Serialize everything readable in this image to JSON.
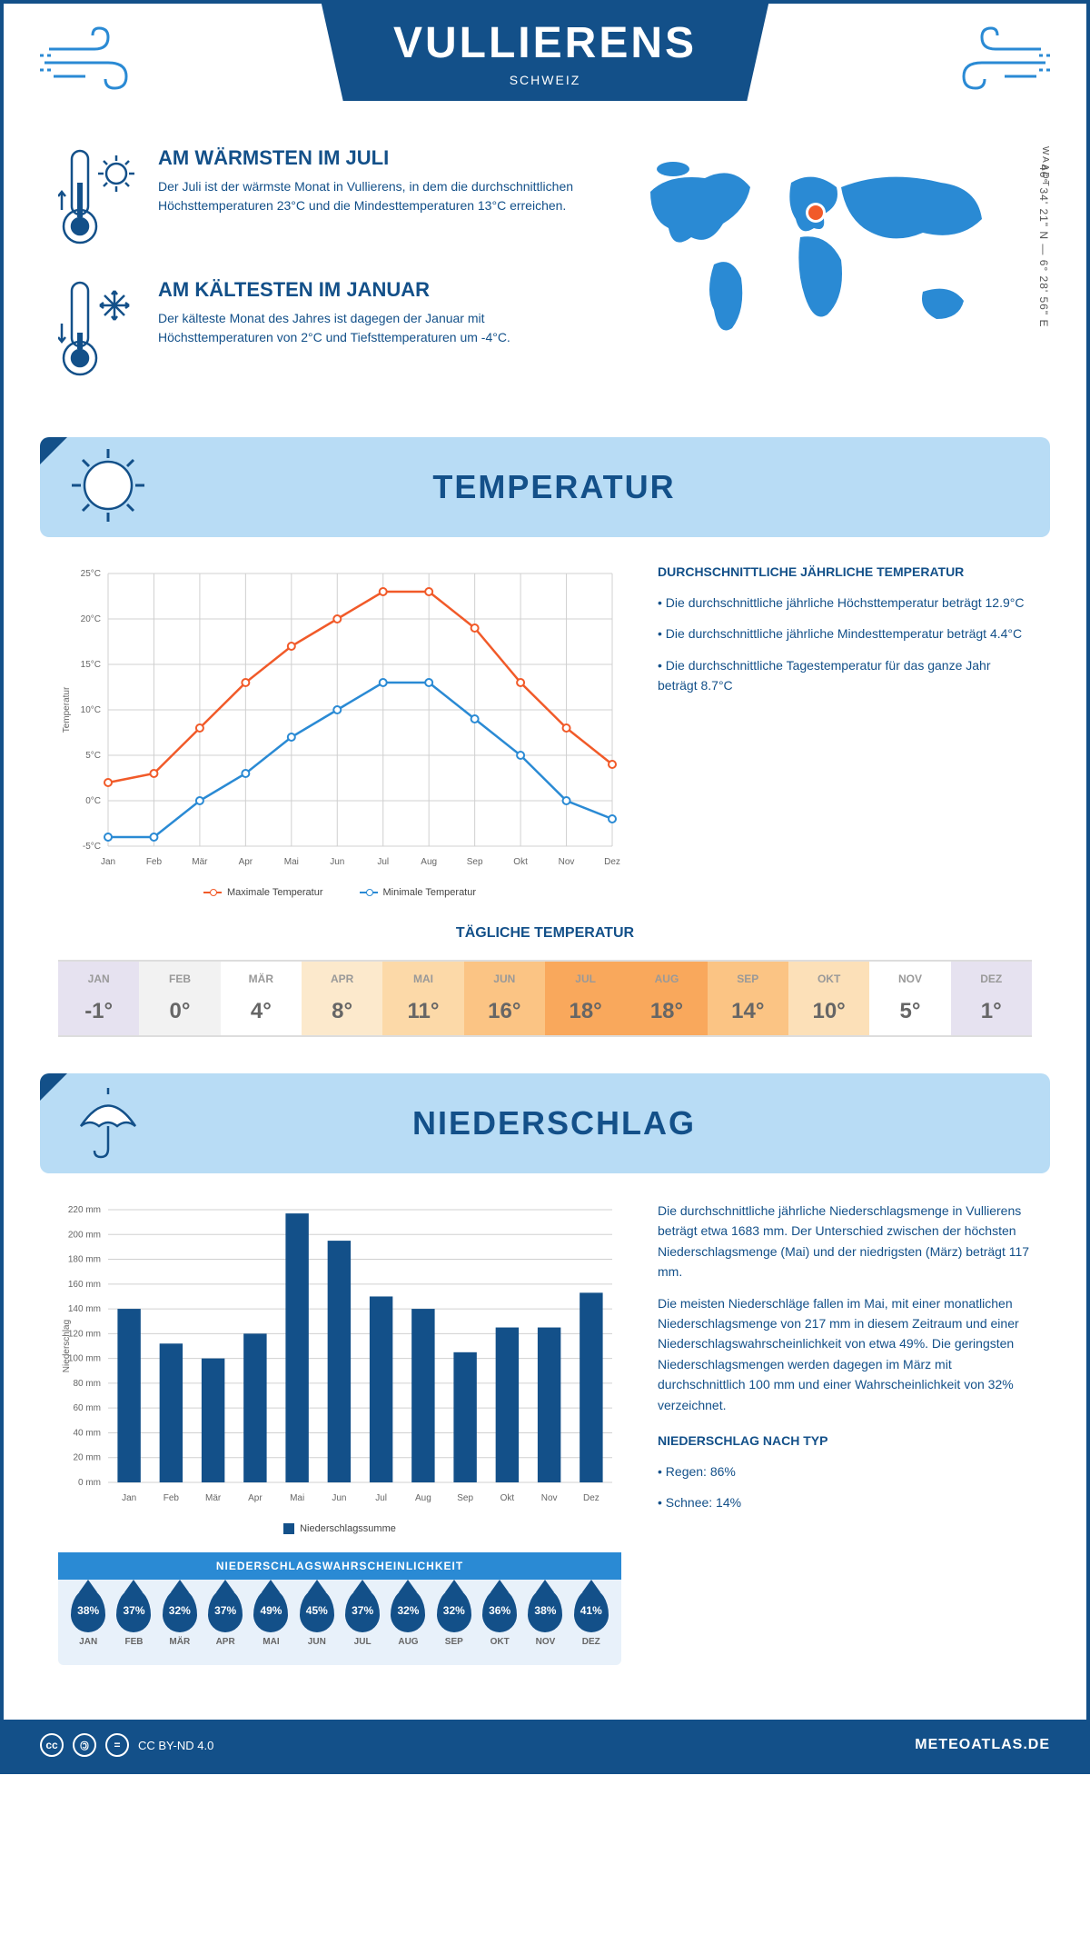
{
  "title": "VULLIERENS",
  "country": "SCHWEIZ",
  "region": "WAADT",
  "coords": "46° 34' 21\" N — 6° 28' 56\" E",
  "colors": {
    "dark_blue": "#135089",
    "light_blue": "#b8dcf5",
    "mid_blue": "#2a8ad4",
    "orange": "#f15a29",
    "line_blue": "#2a8ad4"
  },
  "warmest": {
    "title": "AM WÄRMSTEN IM JULI",
    "text": "Der Juli ist der wärmste Monat in Vullierens, in dem die durchschnittlichen Höchsttemperaturen 23°C und die Mindesttemperaturen 13°C erreichen."
  },
  "coldest": {
    "title": "AM KÄLTESTEN IM JANUAR",
    "text": "Der kälteste Monat des Jahres ist dagegen der Januar mit Höchsttemperaturen von 2°C und Tiefsttemperaturen um -4°C."
  },
  "temp_section": {
    "heading": "TEMPERATUR",
    "side_title": "DURCHSCHNITTLICHE JÄHRLICHE TEMPERATUR",
    "bullet1": "• Die durchschnittliche jährliche Höchsttemperatur beträgt 12.9°C",
    "bullet2": "• Die durchschnittliche jährliche Mindesttemperatur beträgt 4.4°C",
    "bullet3": "• Die durchschnittliche Tagestemperatur für das ganze Jahr beträgt 8.7°C",
    "legend_max": "Maximale Temperatur",
    "legend_min": "Minimale Temperatur",
    "daily_heading": "TÄGLICHE TEMPERATUR",
    "y_label": "Temperatur",
    "months": [
      "Jan",
      "Feb",
      "Mär",
      "Apr",
      "Mai",
      "Jun",
      "Jul",
      "Aug",
      "Sep",
      "Okt",
      "Nov",
      "Dez"
    ],
    "max_values": [
      2,
      3,
      8,
      13,
      17,
      20,
      23,
      23,
      19,
      13,
      8,
      4
    ],
    "min_values": [
      -4,
      -4,
      0,
      3,
      7,
      10,
      13,
      13,
      9,
      5,
      0,
      -2
    ],
    "ylim": [
      -5,
      25
    ],
    "ytick_step": 5,
    "grid_color": "#d0d0d0",
    "daily_temps": [
      {
        "mon": "JAN",
        "val": "-1°",
        "bg": "#e6e2f0"
      },
      {
        "mon": "FEB",
        "val": "0°",
        "bg": "#f2f2f2"
      },
      {
        "mon": "MÄR",
        "val": "4°",
        "bg": "#ffffff"
      },
      {
        "mon": "APR",
        "val": "8°",
        "bg": "#fce9cc"
      },
      {
        "mon": "MAI",
        "val": "11°",
        "bg": "#fcd9a8"
      },
      {
        "mon": "JUN",
        "val": "16°",
        "bg": "#fbc484"
      },
      {
        "mon": "JUL",
        "val": "18°",
        "bg": "#f9a85c"
      },
      {
        "mon": "AUG",
        "val": "18°",
        "bg": "#f9a85c"
      },
      {
        "mon": "SEP",
        "val": "14°",
        "bg": "#fbc484"
      },
      {
        "mon": "OKT",
        "val": "10°",
        "bg": "#fce0b8"
      },
      {
        "mon": "NOV",
        "val": "5°",
        "bg": "#ffffff"
      },
      {
        "mon": "DEZ",
        "val": "1°",
        "bg": "#e6e2f0"
      }
    ]
  },
  "precip_section": {
    "heading": "NIEDERSCHLAG",
    "para1": "Die durchschnittliche jährliche Niederschlagsmenge in Vullierens beträgt etwa 1683 mm. Der Unterschied zwischen der höchsten Niederschlagsmenge (Mai) und der niedrigsten (März) beträgt 117 mm.",
    "para2": "Die meisten Niederschläge fallen im Mai, mit einer monatlichen Niederschlagsmenge von 217 mm in diesem Zeitraum und einer Niederschlagswahrscheinlichkeit von etwa 49%. Die geringsten Niederschlagsmengen werden dagegen im März mit durchschnittlich 100 mm und einer Wahrscheinlichkeit von 32% verzeichnet.",
    "type_title": "NIEDERSCHLAG NACH TYP",
    "type1": "• Regen: 86%",
    "type2": "• Schnee: 14%",
    "legend": "Niederschlagssumme",
    "y_label": "Niederschlag",
    "months": [
      "Jan",
      "Feb",
      "Mär",
      "Apr",
      "Mai",
      "Jun",
      "Jul",
      "Aug",
      "Sep",
      "Okt",
      "Nov",
      "Dez"
    ],
    "values": [
      140,
      112,
      100,
      120,
      217,
      195,
      150,
      140,
      105,
      125,
      125,
      153
    ],
    "ylim": [
      0,
      220
    ],
    "ytick_step": 20,
    "grid_color": "#d0d0d0",
    "bar_color": "#135089",
    "prob_heading": "NIEDERSCHLAGSWAHRSCHEINLICHKEIT",
    "prob": [
      {
        "mon": "JAN",
        "val": "38%"
      },
      {
        "mon": "FEB",
        "val": "37%"
      },
      {
        "mon": "MÄR",
        "val": "32%"
      },
      {
        "mon": "APR",
        "val": "37%"
      },
      {
        "mon": "MAI",
        "val": "49%"
      },
      {
        "mon": "JUN",
        "val": "45%"
      },
      {
        "mon": "JUL",
        "val": "37%"
      },
      {
        "mon": "AUG",
        "val": "32%"
      },
      {
        "mon": "SEP",
        "val": "32%"
      },
      {
        "mon": "OKT",
        "val": "36%"
      },
      {
        "mon": "NOV",
        "val": "38%"
      },
      {
        "mon": "DEZ",
        "val": "41%"
      }
    ]
  },
  "footer": {
    "license": "CC BY-ND 4.0",
    "site": "METEOATLAS.DE"
  }
}
